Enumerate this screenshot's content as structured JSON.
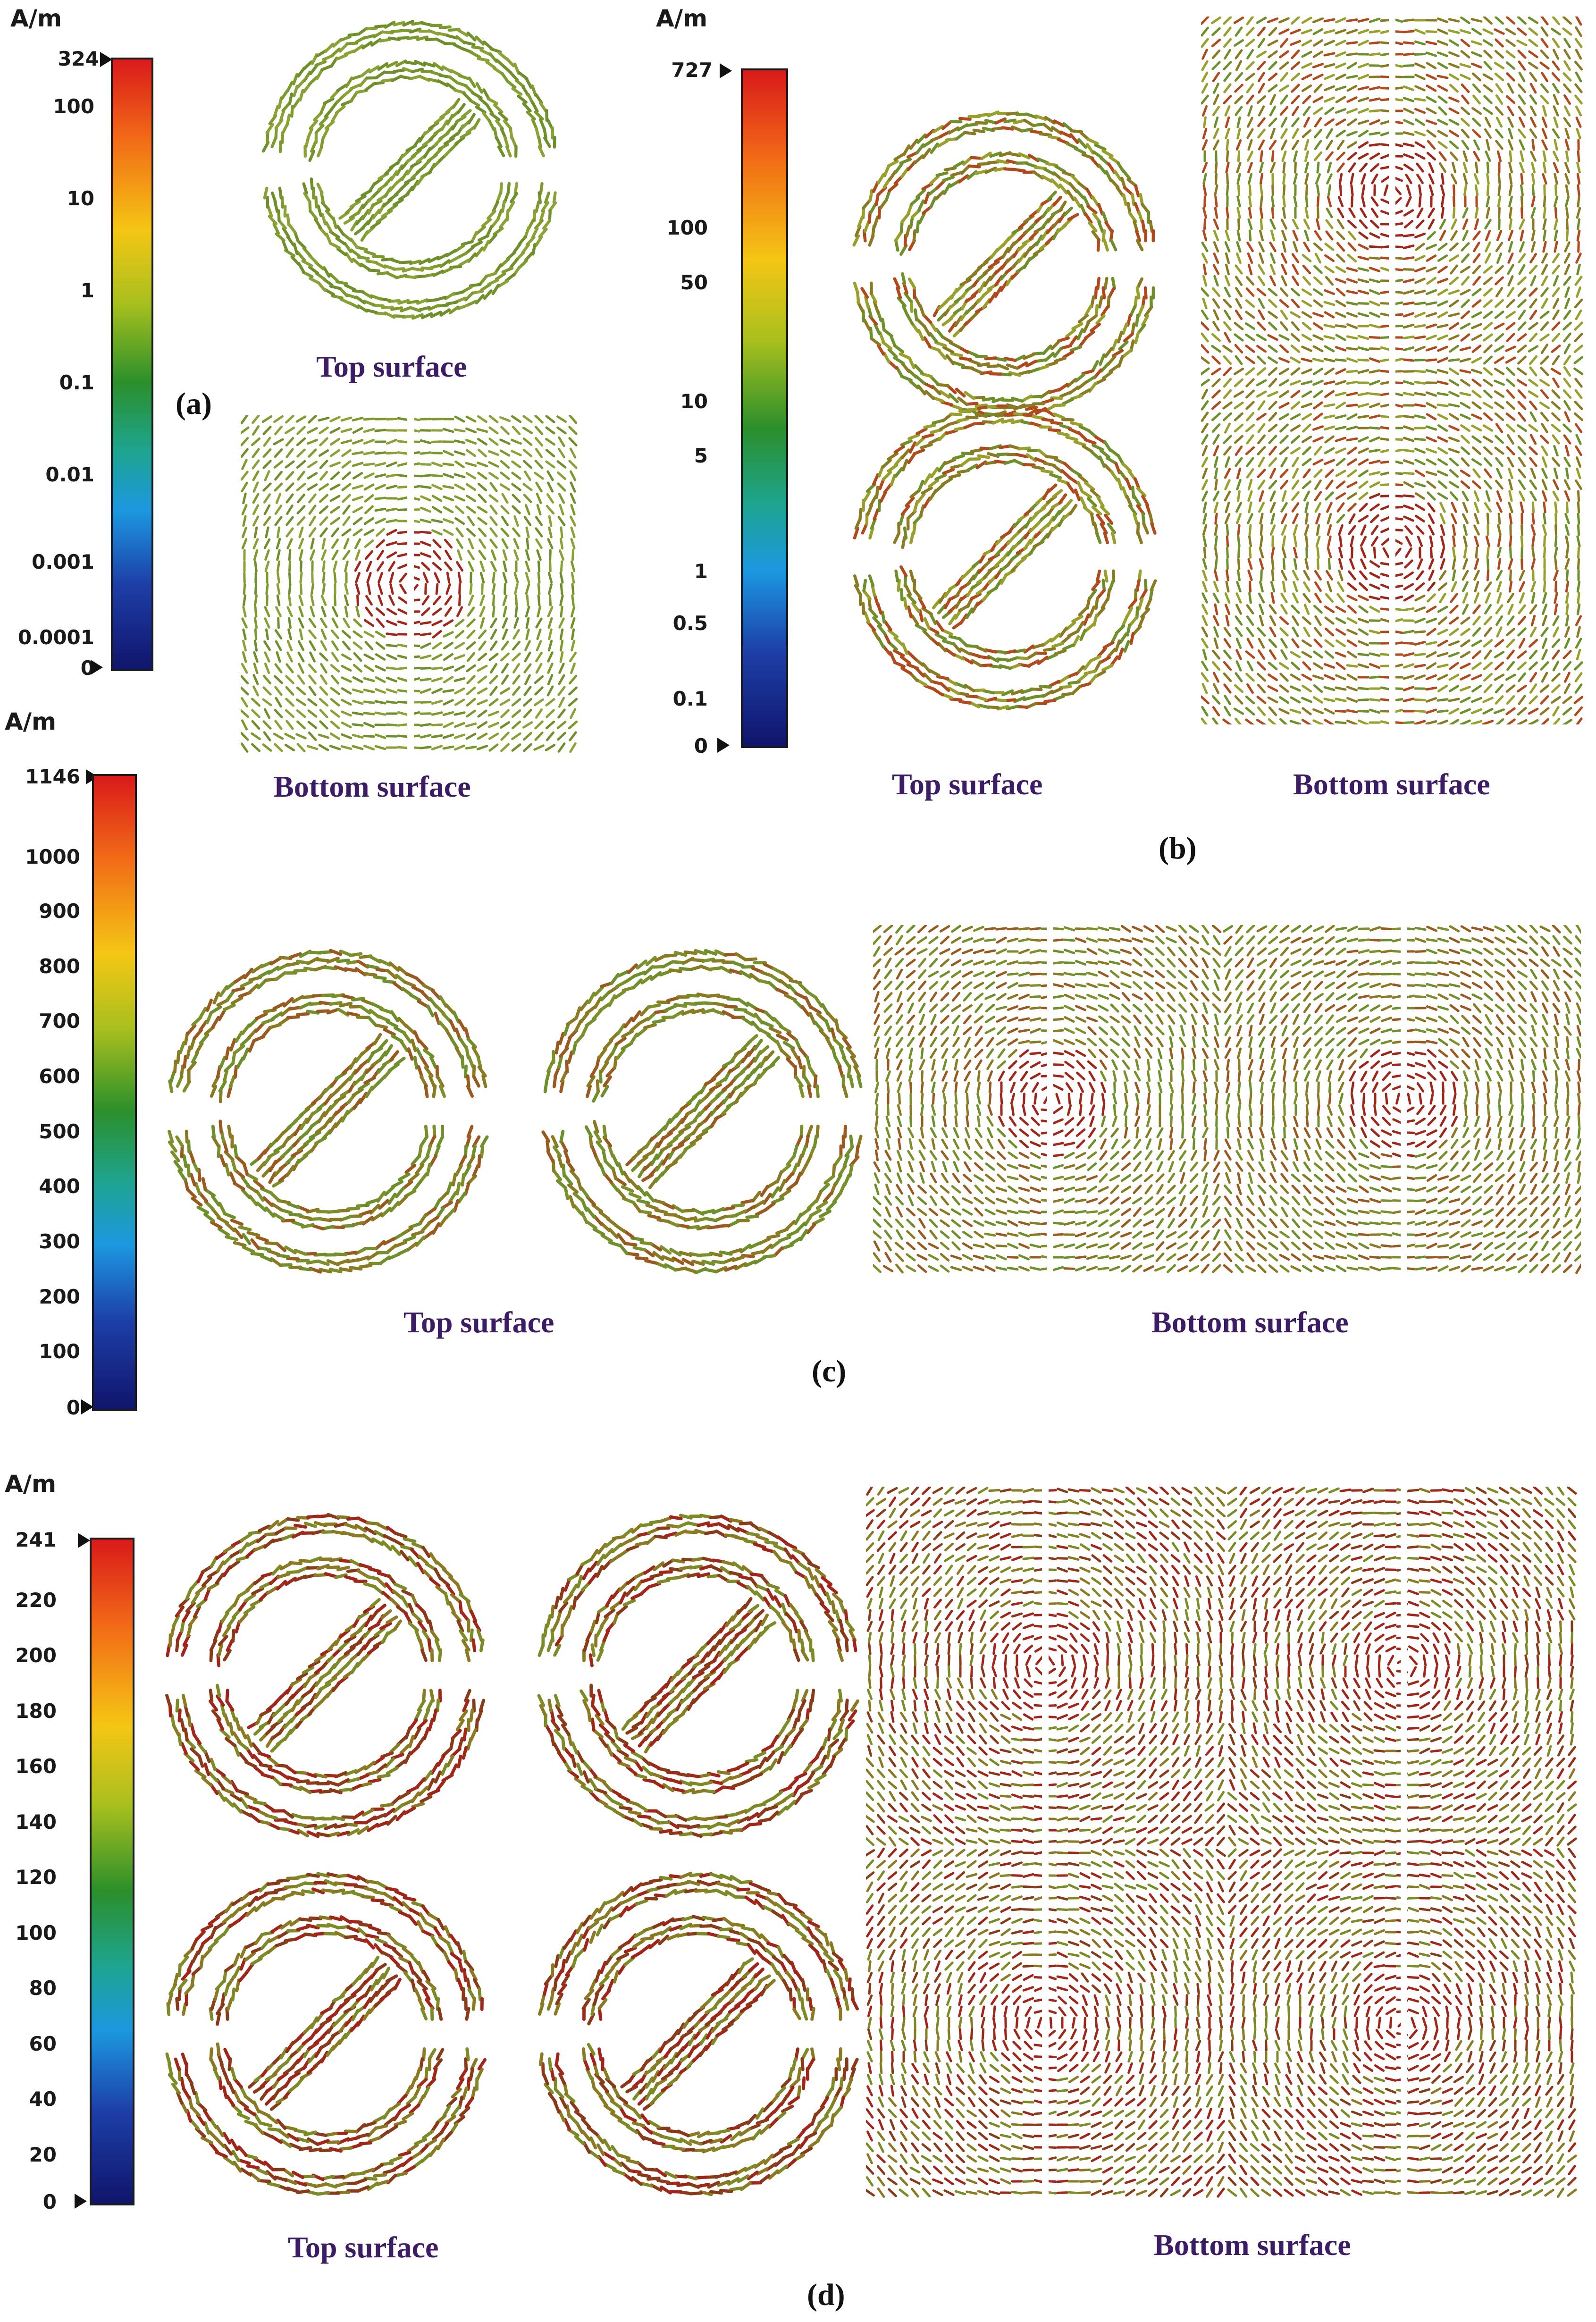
{
  "figure": {
    "caption_top": "Top surface",
    "caption_bottom": "Bottom surface"
  },
  "panels": {
    "a": {
      "label": "(a)",
      "unit": "A/m",
      "max_marker": "324",
      "ticks": [
        "100",
        "10",
        "1",
        "0.1",
        "0.01",
        "0.001",
        "0.0001"
      ],
      "min_marker": "0"
    },
    "b": {
      "label": "(b)",
      "unit": "A/m",
      "max_marker": "727",
      "ticks": [
        "100",
        "50",
        "10",
        "5",
        "1",
        "0.5",
        "0.1"
      ],
      "min_marker": "0"
    },
    "c": {
      "label": "(c)",
      "unit": "A/m",
      "max_marker": "1146",
      "ticks": [
        "1000",
        "900",
        "800",
        "700",
        "600",
        "500",
        "400",
        "300",
        "200",
        "100"
      ],
      "min_marker": "0"
    },
    "d": {
      "label": "(d)",
      "unit": "A/m",
      "max_marker": "241",
      "ticks": [
        "220",
        "200",
        "180",
        "160",
        "140",
        "120",
        "100",
        "80",
        "60",
        "40",
        "20"
      ],
      "min_marker": "0"
    }
  },
  "colors": {
    "caption": "#3d1c66",
    "field_low": "#6f8f2a",
    "field_mid": "#8a7a22",
    "field_high": "#a0261a",
    "background": "#ffffff"
  }
}
